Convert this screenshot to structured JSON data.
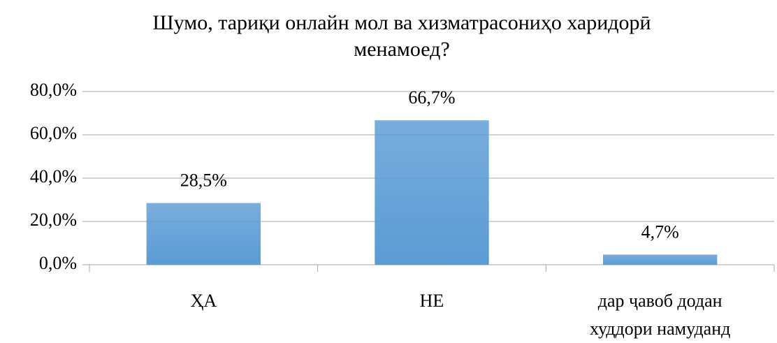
{
  "chart_data": {
    "type": "bar",
    "title": "Шумо, тариқи онлайн мол ва хизматрасониҳо харидорӣ менамоед?",
    "categories": [
      "ҲА",
      "НЕ",
      "дар ҷавоб додан худдори намуданд"
    ],
    "values": [
      28.5,
      66.7,
      4.7
    ],
    "value_labels": [
      "28,5%",
      "66,7%",
      "4,7%"
    ],
    "color": "#5b9bd5",
    "ylim": [
      0,
      80
    ],
    "yticks": [
      {
        "value": 0,
        "label": "0,0%"
      },
      {
        "value": 20,
        "label": "20,0%"
      },
      {
        "value": 40,
        "label": "40,0%"
      },
      {
        "value": 60,
        "label": "60,0%"
      },
      {
        "value": 80,
        "label": "80,0%"
      }
    ],
    "grid": true
  }
}
